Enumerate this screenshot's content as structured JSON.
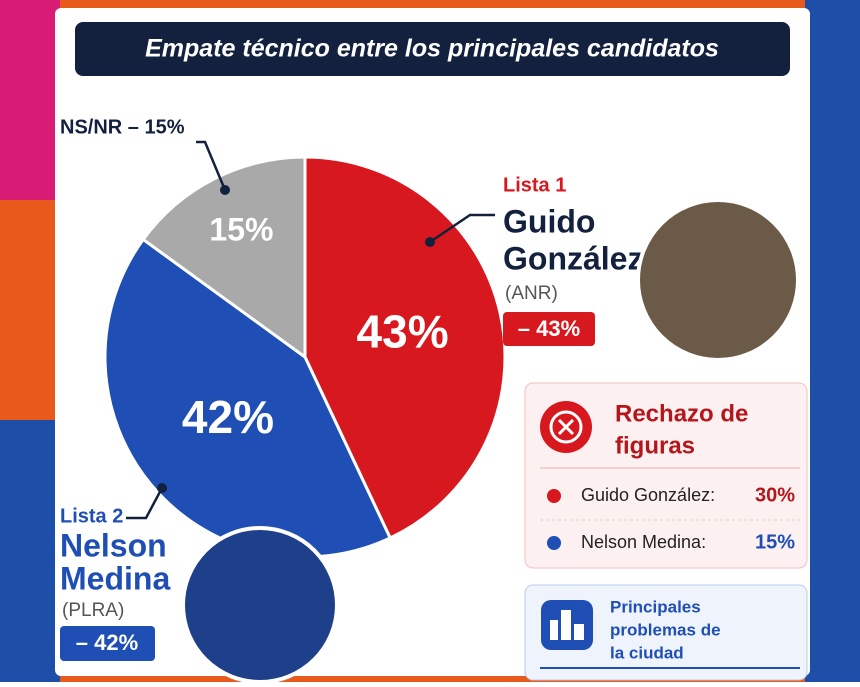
{
  "chart_data": {
    "type": "pie",
    "title": "Empate técnico entre los principales candidatos",
    "values": [
      43,
      42,
      15
    ],
    "value_labels": [
      "43%",
      "42%",
      "15%"
    ],
    "colors": [
      "#d7191f",
      "#1f4fb5",
      "#a9a9a9"
    ],
    "callouts": [
      {
        "list": "Lista 1",
        "name_lines": [
          "Guido",
          "González"
        ],
        "party": "(ANR)",
        "badge": "– 43%"
      },
      {
        "list": "Lista 2",
        "name_lines": [
          "Nelson",
          "Medina"
        ],
        "party": "(PLRA)",
        "badge": "– 42%"
      },
      {
        "label": "NS/NR – 15%"
      }
    ]
  },
  "rejection_panel": {
    "title_lines": [
      "Rechazo de",
      "figuras"
    ],
    "rows": [
      [
        "Guido González:",
        "30%"
      ],
      [
        "Nelson Medina:",
        "15%"
      ]
    ]
  },
  "problems_panel": {
    "title_lines": [
      "Principales",
      "problemas de",
      "la ciudad"
    ]
  }
}
